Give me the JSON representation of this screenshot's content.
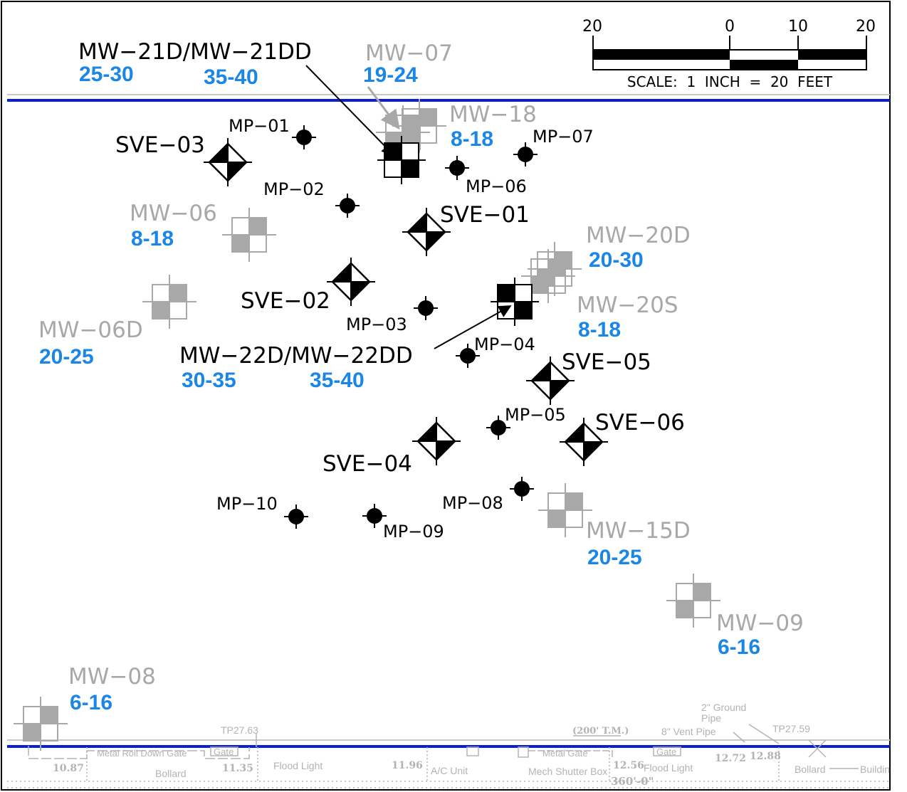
{
  "scale": {
    "ticks": [
      "20",
      "0",
      "10",
      "20"
    ],
    "caption": "SCALE:  1  INCH  =  20  FEET"
  },
  "wells": {
    "mw21": {
      "label": "MW−21D/MW−21DD",
      "depth_a": "25-30",
      "depth_b": "35-40"
    },
    "mw07": {
      "label": "MW−07",
      "depth": "19-24"
    },
    "mw18": {
      "label": "MW−18",
      "depth": "8-18"
    },
    "mw06": {
      "label": "MW−06",
      "depth": "8-18"
    },
    "mw20d": {
      "label": "MW−20D",
      "depth": "20-30"
    },
    "mw20s": {
      "label": "MW−20S",
      "depth": "8-18"
    },
    "mw06d": {
      "label": "MW−06D",
      "depth": "20-25"
    },
    "mw22": {
      "label": "MW−22D/MW−22DD",
      "depth_a": "30-35",
      "depth_b": "35-40"
    },
    "mw15d": {
      "label": "MW−15D",
      "depth": "20-25"
    },
    "mw09": {
      "label": "MW−09",
      "depth": "6-16"
    },
    "mw08": {
      "label": "MW−08",
      "depth": "6-16"
    }
  },
  "sve": {
    "sve01": "SVE−01",
    "sve02": "SVE−02",
    "sve03": "SVE−03",
    "sve04": "SVE−04",
    "sve05": "SVE−05",
    "sve06": "SVE−06"
  },
  "mp": {
    "mp01": "MP−01",
    "mp02": "MP−02",
    "mp03": "MP−03",
    "mp04": "MP−04",
    "mp05": "MP−05",
    "mp06": "MP−06",
    "mp07": "MP−07",
    "mp08": "MP−08",
    "mp09": "MP−09",
    "mp10": "MP−10"
  },
  "site": {
    "tp1": "TP27.63",
    "tp2": "TP27.59",
    "tm": "(200' T.M.)",
    "ground_pipe_1": "2\" Ground",
    "ground_pipe_2": "Pipe",
    "vent_pipe": "8\" Vent Pipe",
    "metal_roll_down_gate": "Metal Roll Down Gate",
    "gate1": "Gate",
    "gate2": "Gate",
    "metal_gate": "Metal Gate",
    "bollard1": "Bollard",
    "bollard2": "Bollard",
    "flood_light1": "Flood Light",
    "flood_light2": "Flood Light",
    "ac_unit": "A/C Unit",
    "mech_shutter_box": "Mech Shutter Box",
    "building": "Buildin",
    "v1087": "10.87",
    "v1135": "11.35",
    "v1196": "11.96",
    "v1256": "12.56",
    "v1272": "12.72",
    "v1288": "12.88",
    "dimension": "360'-0\""
  },
  "colors": {
    "boundary_blue": "#0b1fd6",
    "depth_blue": "#1a86e6",
    "well_gray": "#a8a8a8",
    "site_gray": "#b3b3b3"
  }
}
